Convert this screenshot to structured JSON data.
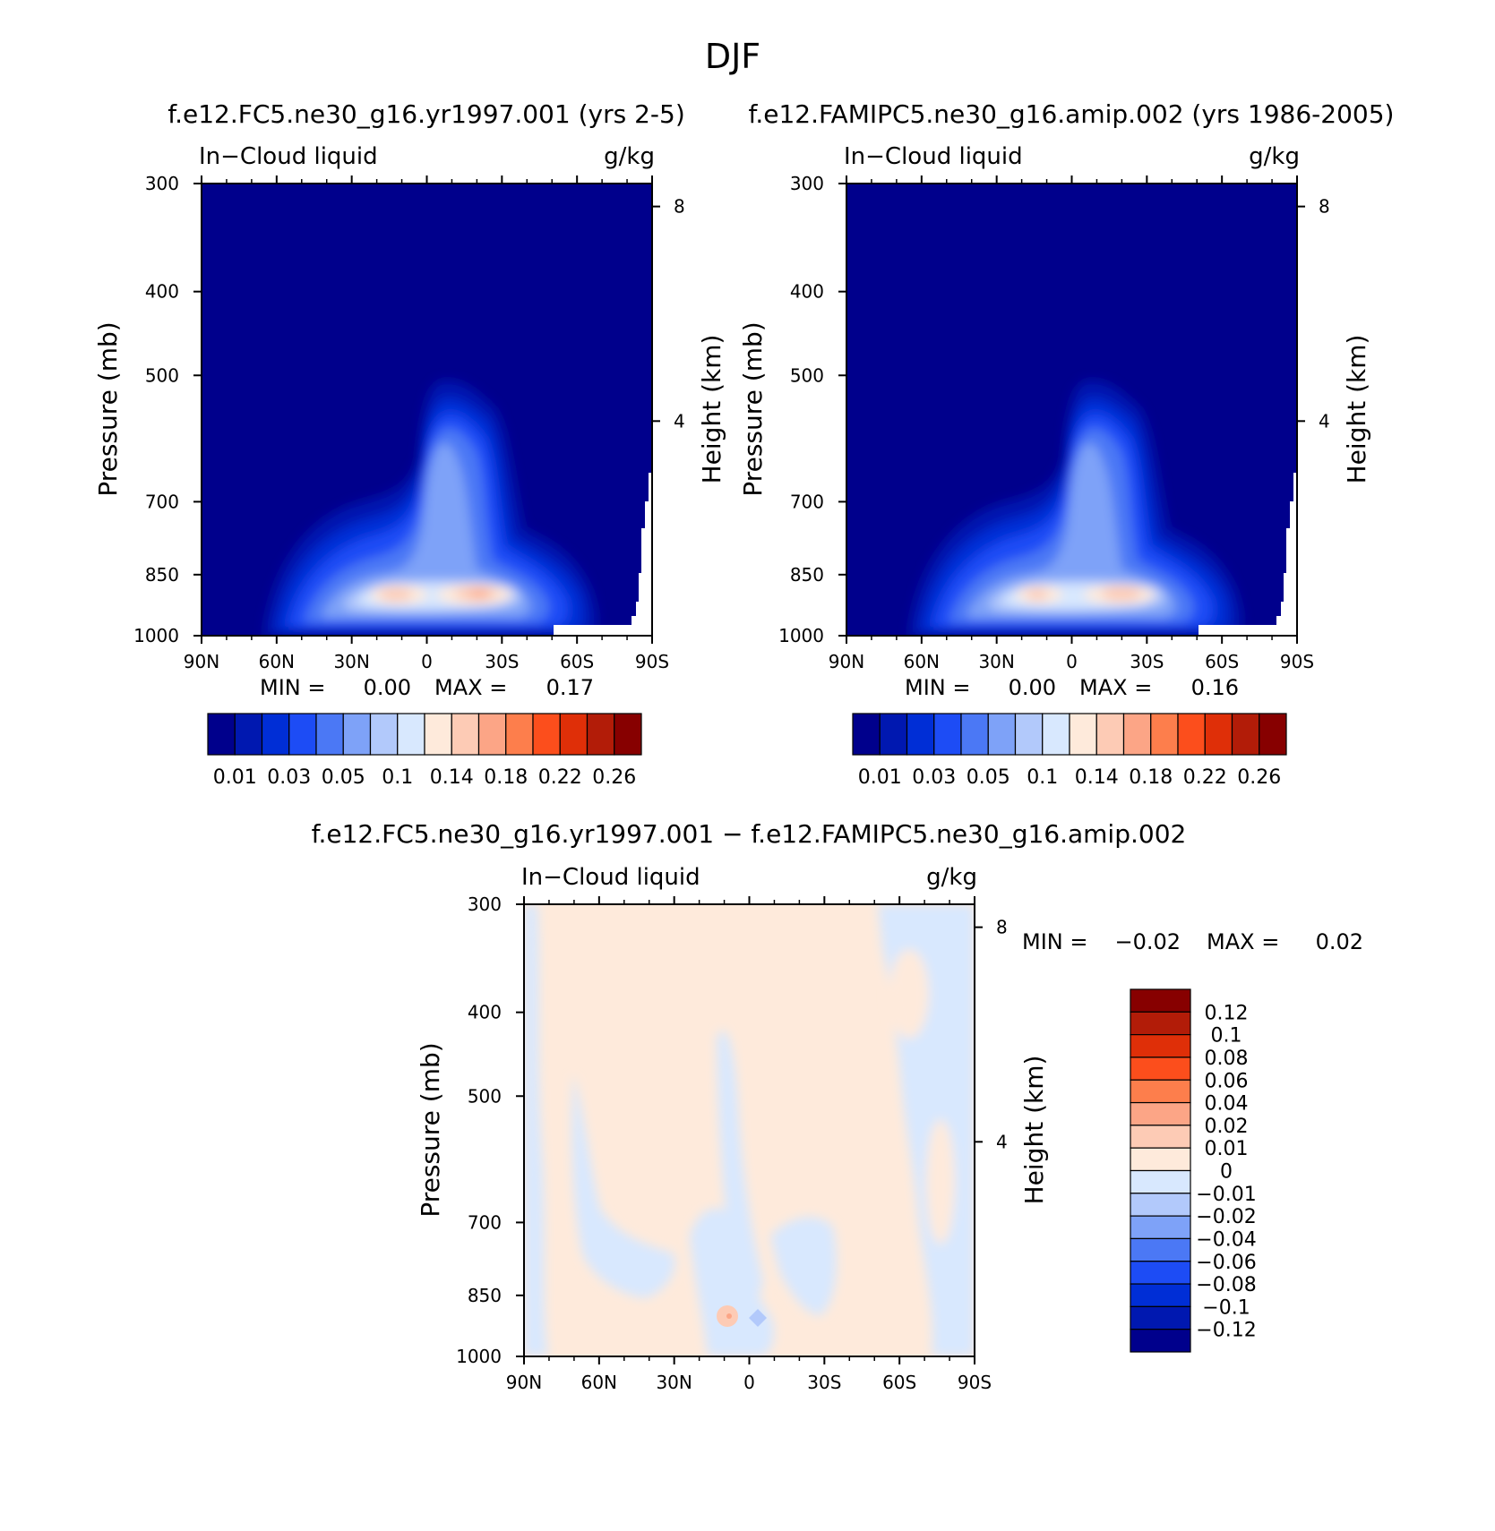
{
  "page_title": "DJF",
  "colors": {
    "abs_scale": [
      "#00008c",
      "#0018b0",
      "#002ed6",
      "#1d4cf5",
      "#4b78f5",
      "#7ea2f8",
      "#b2c9fb",
      "#d8e8fe",
      "#feeadb",
      "#fdcbb5",
      "#fca586",
      "#fd7e4c",
      "#fc4e1c",
      "#df2f08",
      "#b21c08",
      "#870000"
    ],
    "diff_scale": [
      "#00008c",
      "#0018b0",
      "#002ed6",
      "#1d4cf5",
      "#4b78f5",
      "#7ea2f8",
      "#b2c9fb",
      "#d8e8fe",
      "#feeadb",
      "#fdcbb5",
      "#fca586",
      "#fd7e4c",
      "#fc4e1c",
      "#df2f08",
      "#b21c08",
      "#870000"
    ]
  },
  "chart_data": [
    {
      "type": "heatmap",
      "panel": "top-left",
      "title": "f.e12.FC5.ne30_g16.yr1997.001 (yrs 2-5)",
      "left_label": "In−Cloud liquid",
      "right_label": "g/kg",
      "ylabel": "Pressure (mb)",
      "ylabel_right": "Height (km)",
      "x_ticks": [
        "90N",
        "60N",
        "30N",
        "0",
        "30S",
        "60S",
        "90S"
      ],
      "y_ticks": [
        300,
        400,
        500,
        700,
        850,
        1000
      ],
      "y_right_ticks": [
        8,
        4
      ],
      "min_label": "MIN =",
      "min_value": "0.00",
      "max_label": "MAX =",
      "max_value": "0.17",
      "colorbar_labels": [
        "0.01",
        "0.03",
        "0.05",
        "0.1",
        "0.14",
        "0.18",
        "0.22",
        "0.26"
      ],
      "colorbar_levels": [
        0.01,
        0.02,
        0.03,
        0.04,
        0.05,
        0.07,
        0.1,
        0.12,
        0.14,
        0.16,
        0.18,
        0.2,
        0.22,
        0.24,
        0.26
      ]
    },
    {
      "type": "heatmap",
      "panel": "top-right",
      "title": "f.e12.FAMIPC5.ne30_g16.amip.002 (yrs 1986-2005)",
      "left_label": "In−Cloud liquid",
      "right_label": "g/kg",
      "ylabel": "Pressure (mb)",
      "ylabel_right": "Height (km)",
      "x_ticks": [
        "90N",
        "60N",
        "30N",
        "0",
        "30S",
        "60S",
        "90S"
      ],
      "y_ticks": [
        300,
        400,
        500,
        700,
        850,
        1000
      ],
      "y_right_ticks": [
        8,
        4
      ],
      "min_label": "MIN =",
      "min_value": "0.00",
      "max_label": "MAX =",
      "max_value": "0.16",
      "colorbar_labels": [
        "0.01",
        "0.03",
        "0.05",
        "0.1",
        "0.14",
        "0.18",
        "0.22",
        "0.26"
      ],
      "colorbar_levels": [
        0.01,
        0.02,
        0.03,
        0.04,
        0.05,
        0.07,
        0.1,
        0.12,
        0.14,
        0.16,
        0.18,
        0.2,
        0.22,
        0.24,
        0.26
      ]
    },
    {
      "type": "heatmap",
      "panel": "bottom",
      "title": "f.e12.FC5.ne30_g16.yr1997.001 − f.e12.FAMIPC5.ne30_g16.amip.002",
      "left_label": "In−Cloud liquid",
      "right_label": "g/kg",
      "ylabel": "Pressure (mb)",
      "ylabel_right": "Height (km)",
      "x_ticks": [
        "90N",
        "60N",
        "30N",
        "0",
        "30S",
        "60S",
        "90S"
      ],
      "y_ticks": [
        300,
        400,
        500,
        700,
        850,
        1000
      ],
      "y_right_ticks": [
        8,
        4
      ],
      "min_label": "MIN =",
      "min_value": "−0.02",
      "max_label": "MAX =",
      "max_value": "0.02",
      "colorbar_labels": [
        "0.12",
        "0.1",
        "0.08",
        "0.06",
        "0.04",
        "0.02",
        "0.01",
        "0",
        "−0.01",
        "−0.02",
        "−0.04",
        "−0.06",
        "−0.08",
        "−0.1",
        "−0.12"
      ]
    }
  ]
}
